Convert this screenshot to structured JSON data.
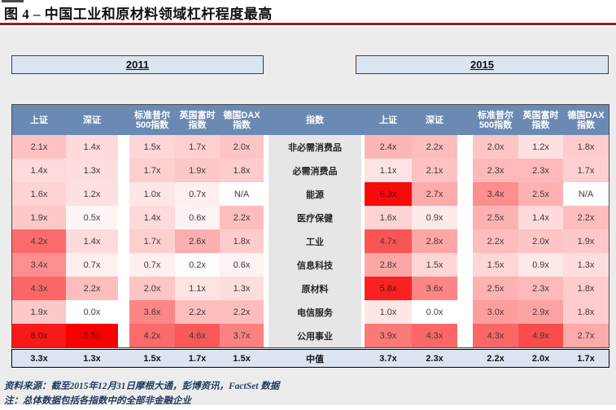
{
  "title": "图 4 – 中国工业和原材料领域杠杆程度最高",
  "colors": {
    "title_rule": "#9b1b1b",
    "panel_bg": "#ececec",
    "header_bg": "#6b8ab3",
    "header_text": "#ffffff",
    "blue_row_bg": "#dbe5f1",
    "index_col_bg": "#e6e6e6",
    "heat_full_red": "#fb0000",
    "heat_white": "#ffffff"
  },
  "footnotes": {
    "source": "资料来源：截至2015年12月31日摩根大通，彭博资讯，FactSet 数据",
    "note": "注：总体数据包括各指数中的全部非金融企业"
  },
  "chart_data": {
    "type": "heatmap",
    "title": "图 4 – 中国工业和原材料领域杠杆程度最高",
    "legend_years": [
      "2011",
      "2015"
    ],
    "index_header": "指数",
    "column_groups": [
      {
        "year": "2011",
        "columns": [
          [
            "上证"
          ],
          [
            "深证"
          ],
          [
            "标准普尔",
            "500指数"
          ],
          [
            "英国富时",
            "指数"
          ],
          [
            "德国DAX",
            "指数"
          ]
        ]
      },
      {
        "year": "2015",
        "columns": [
          [
            "上证"
          ],
          [
            "深证"
          ],
          [
            "标准普尔",
            "500指数"
          ],
          [
            "英国富时",
            "指数"
          ],
          [
            "德国DAX",
            "指数"
          ]
        ]
      }
    ],
    "rows": [
      {
        "label": "非必需消费品",
        "v2011": [
          "2.1x",
          "1.4x",
          "1.5x",
          "1.7x",
          "2.0x"
        ],
        "v2015": [
          "2.4x",
          "2.2x",
          "2.0x",
          "1.2x",
          "1.8x"
        ]
      },
      {
        "label": "必需消费品",
        "v2011": [
          "1.4x",
          "1.3x",
          "1.7x",
          "1.9x",
          "1.8x"
        ],
        "v2015": [
          "1.1x",
          "2.1x",
          "2.3x",
          "2.3x",
          "1.7x"
        ]
      },
      {
        "label": "能源",
        "v2011": [
          "1.6x",
          "1.2x",
          "1.0x",
          "0.7x",
          "N/A"
        ],
        "v2015": [
          "6.3x",
          "2.7x",
          "3.4x",
          "2.5x",
          "N/A"
        ]
      },
      {
        "label": "医疗保健",
        "v2011": [
          "1.9x",
          "0.5x",
          "1.4x",
          "0.6x",
          "2.2x"
        ],
        "v2015": [
          "1.6x",
          "0.9x",
          "2.5x",
          "1.4x",
          "2.2x"
        ]
      },
      {
        "label": "工业",
        "v2011": [
          "4.2x",
          "1.4x",
          "1.7x",
          "2.6x",
          "1.8x"
        ],
        "v2015": [
          "4.7x",
          "2.8x",
          "2.2x",
          "2.0x",
          "1.9x"
        ]
      },
      {
        "label": "信息科技",
        "v2011": [
          "3.4x",
          "0.7x",
          "0.7x",
          "0.2x",
          "0.6x"
        ],
        "v2015": [
          "2.8x",
          "1.5x",
          "1.5x",
          "0.9x",
          "1.3x"
        ]
      },
      {
        "label": "原材料",
        "v2011": [
          "4.3x",
          "2.2x",
          "2.0x",
          "1.1x",
          "1.3x"
        ],
        "v2015": [
          "5.8x",
          "3.6x",
          "2.5x",
          "2.3x",
          "1.8x"
        ]
      },
      {
        "label": "电信服务",
        "v2011": [
          "1.9x",
          "0.0x",
          "3.6x",
          "2.2x",
          "2.2x"
        ],
        "v2015": [
          "1.0x",
          "0.0x",
          "3.0x",
          "2.9x",
          "1.8x"
        ]
      },
      {
        "label": "公用事业",
        "v2011": [
          "6.0x",
          "6.5x",
          "4.2x",
          "4.6x",
          "3.7x"
        ],
        "v2015": [
          "3.9x",
          "4.3x",
          "4.3x",
          "4.9x",
          "2.7x"
        ]
      }
    ],
    "median": {
      "label": "中值",
      "v2011": [
        "3.3x",
        "1.3x",
        "1.5x",
        "1.7x",
        "1.5x"
      ],
      "v2015": [
        "3.7x",
        "2.3x",
        "2.2x",
        "2.0x",
        "1.7x"
      ]
    },
    "scale": {
      "min": 0,
      "max": 6.5,
      "gamma": 1.25,
      "na_values": [
        "N/A"
      ]
    }
  }
}
